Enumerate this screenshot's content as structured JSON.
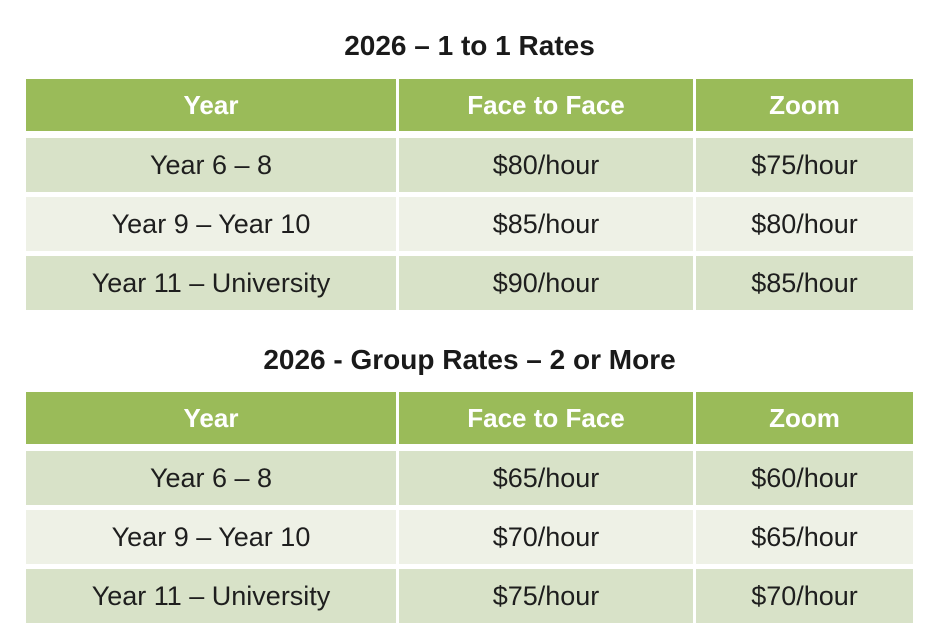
{
  "colors": {
    "header_bg": "#9ABB59",
    "header_text": "#FFFFFF",
    "band_dark": "#D8E2C8",
    "band_light": "#EEF1E6",
    "body_text": "#1E1E1E",
    "title_text": "#1A1A1A"
  },
  "tables": [
    {
      "title": "2026 – 1 to 1 Rates",
      "columns": [
        "Year",
        "Face to Face",
        "Zoom"
      ],
      "rows": [
        [
          "Year 6 – 8",
          "$80/hour",
          "$75/hour"
        ],
        [
          "Year 9 – Year 10",
          "$85/hour",
          "$80/hour"
        ],
        [
          "Year 11 – University",
          "$90/hour",
          "$85/hour"
        ]
      ]
    },
    {
      "title": "2026 - Group Rates – 2 or More",
      "columns": [
        "Year",
        "Face to Face",
        "Zoom"
      ],
      "rows": [
        [
          "Year 6 – 8",
          "$65/hour",
          "$60/hour"
        ],
        [
          "Year 9 – Year 10",
          "$70/hour",
          "$65/hour"
        ],
        [
          "Year 11 – University",
          "$75/hour",
          "$70/hour"
        ]
      ]
    }
  ]
}
